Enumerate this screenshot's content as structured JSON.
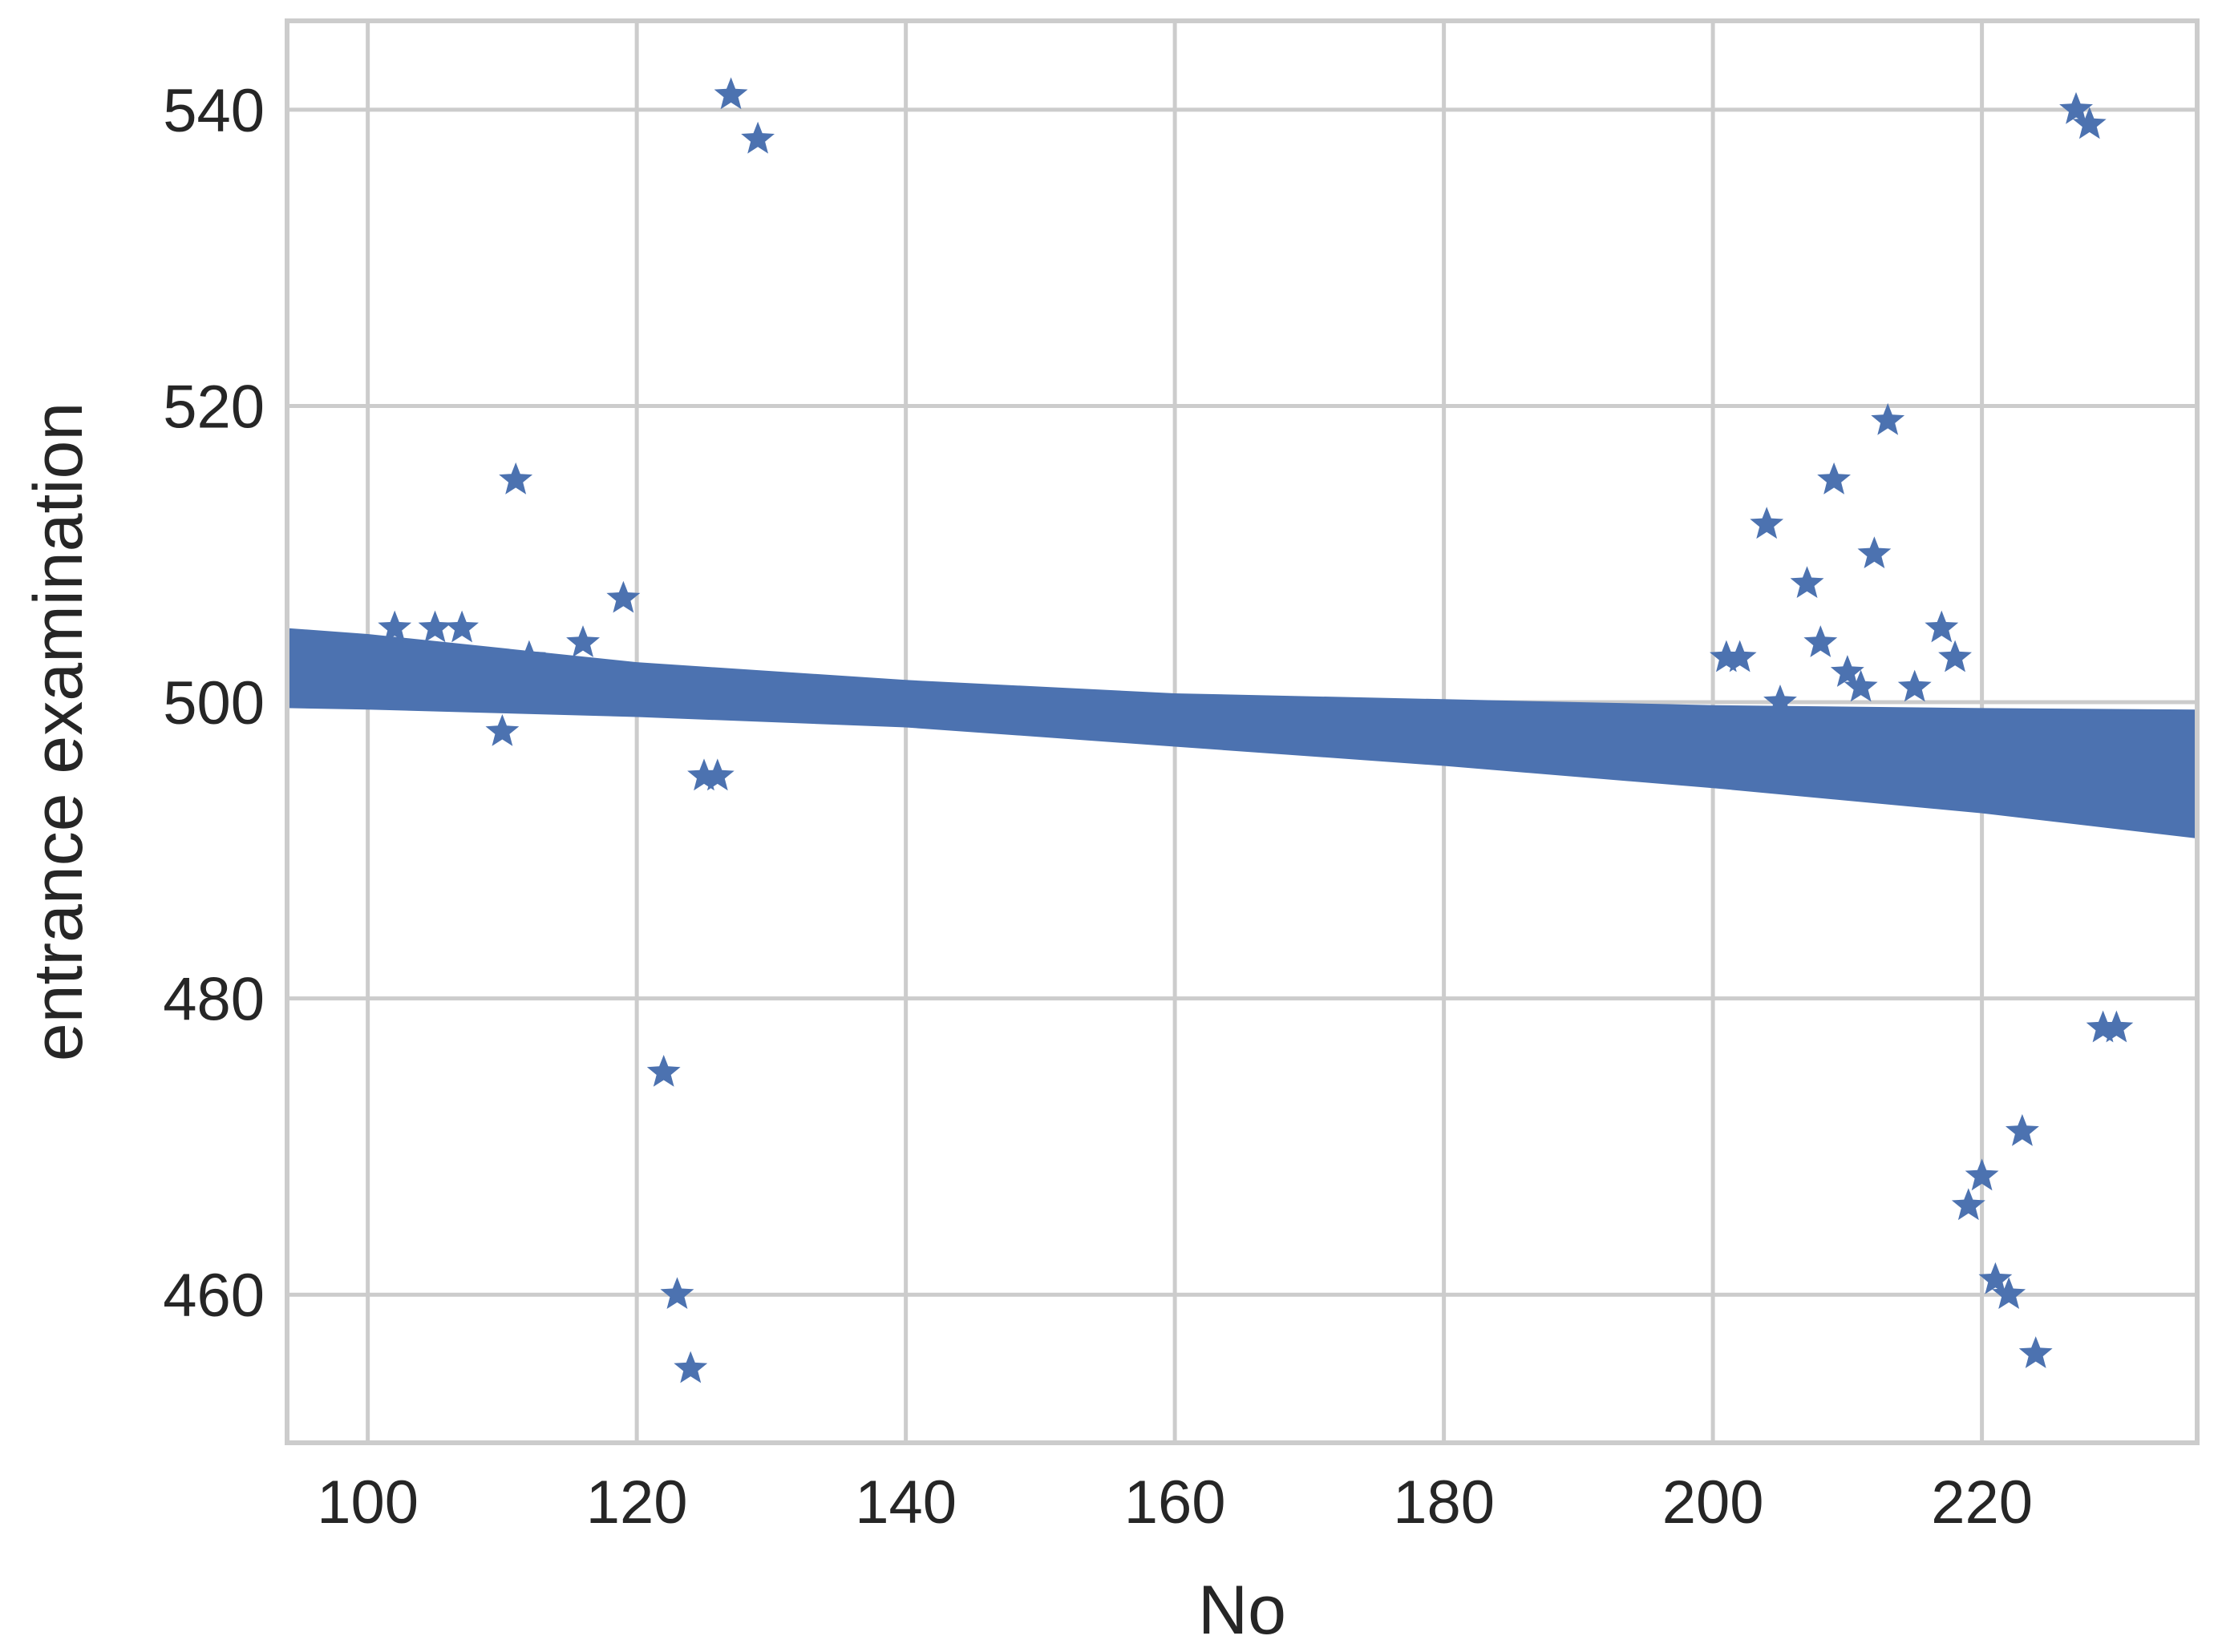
{
  "chart_data": {
    "type": "scatter",
    "title": "",
    "xlabel": "No",
    "ylabel": "entrance examination",
    "xlim": [
      94,
      236
    ],
    "ylim": [
      450,
      546
    ],
    "xticks": [
      100,
      120,
      140,
      160,
      180,
      200,
      220
    ],
    "yticks": [
      460,
      480,
      500,
      520,
      540
    ],
    "xtick_labels": [
      "100",
      "120",
      "140",
      "160",
      "180",
      "200",
      "220"
    ],
    "ytick_labels": [
      "460",
      "480",
      "500",
      "520",
      "540"
    ],
    "grid": true,
    "marker": "star",
    "color": "#4c72b0",
    "grid_color": "#cccccc",
    "points": [
      {
        "x": 102,
        "y": 505
      },
      {
        "x": 105,
        "y": 505
      },
      {
        "x": 107,
        "y": 505
      },
      {
        "x": 110,
        "y": 498
      },
      {
        "x": 111,
        "y": 515
      },
      {
        "x": 112,
        "y": 503
      },
      {
        "x": 116,
        "y": 504
      },
      {
        "x": 119,
        "y": 507
      },
      {
        "x": 122,
        "y": 475
      },
      {
        "x": 123,
        "y": 460
      },
      {
        "x": 124,
        "y": 455
      },
      {
        "x": 125,
        "y": 495
      },
      {
        "x": 126,
        "y": 495
      },
      {
        "x": 127,
        "y": 541
      },
      {
        "x": 129,
        "y": 538
      },
      {
        "x": 201,
        "y": 503
      },
      {
        "x": 202,
        "y": 503
      },
      {
        "x": 204,
        "y": 512
      },
      {
        "x": 205,
        "y": 500
      },
      {
        "x": 207,
        "y": 508
      },
      {
        "x": 208,
        "y": 504
      },
      {
        "x": 209,
        "y": 515
      },
      {
        "x": 210,
        "y": 502
      },
      {
        "x": 211,
        "y": 501
      },
      {
        "x": 212,
        "y": 510
      },
      {
        "x": 213,
        "y": 519
      },
      {
        "x": 215,
        "y": 501
      },
      {
        "x": 217,
        "y": 505
      },
      {
        "x": 218,
        "y": 503
      },
      {
        "x": 219,
        "y": 466
      },
      {
        "x": 220,
        "y": 468
      },
      {
        "x": 221,
        "y": 461
      },
      {
        "x": 222,
        "y": 460
      },
      {
        "x": 223,
        "y": 471
      },
      {
        "x": 224,
        "y": 456
      },
      {
        "x": 227,
        "y": 540
      },
      {
        "x": 228,
        "y": 539
      },
      {
        "x": 229,
        "y": 478
      },
      {
        "x": 230,
        "y": 478
      }
    ],
    "confidence_band": {
      "x": [
        94,
        100,
        120,
        140,
        160,
        180,
        200,
        220,
        236
      ],
      "upper": [
        505.0,
        504.6,
        502.7,
        501.5,
        500.6,
        500.2,
        499.8,
        499.6,
        499.5
      ],
      "lower": [
        499.6,
        499.5,
        499.0,
        498.3,
        497.0,
        495.7,
        494.2,
        492.5,
        490.8
      ]
    }
  }
}
